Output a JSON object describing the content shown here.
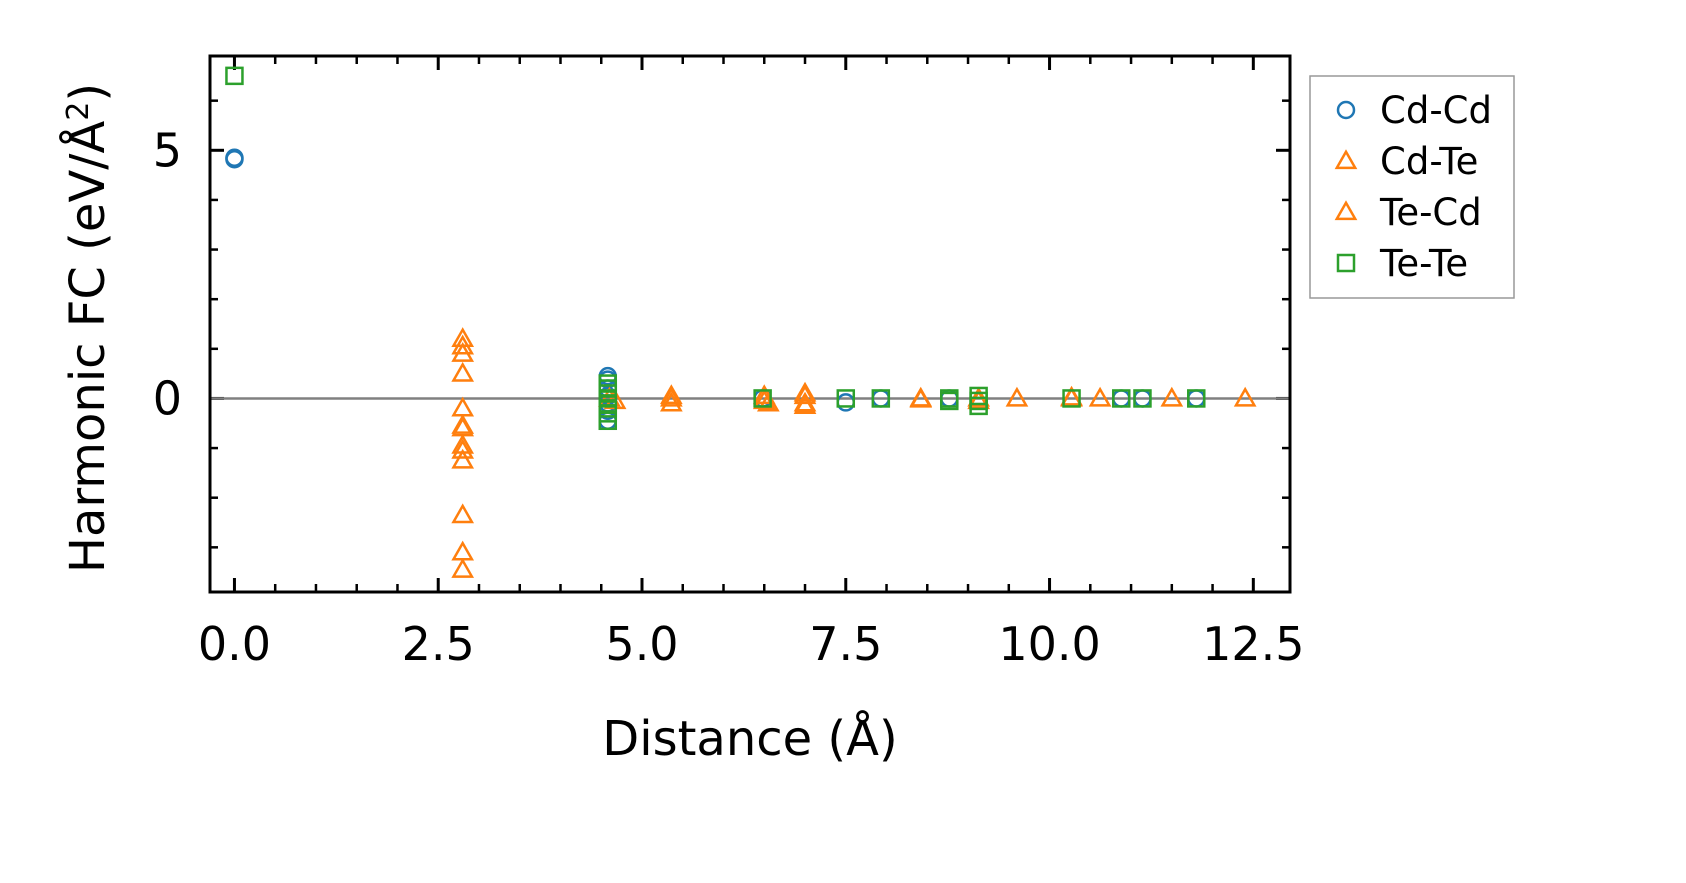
{
  "chart_data": {
    "type": "scatter",
    "title": "",
    "xlabel": "Distance (Å)",
    "ylabel": "Harmonic FC (eV/Å",
    "ylabel_sup": "2",
    "ylabel_close": ")",
    "xlim": [
      -0.3,
      12.95
    ],
    "ylim": [
      -3.9,
      6.9
    ],
    "xticks": [
      0.0,
      2.5,
      5.0,
      7.5,
      10.0,
      12.5
    ],
    "xtick_labels": [
      "0.0",
      "2.5",
      "5.0",
      "7.5",
      "10.0",
      "12.5"
    ],
    "xminor_step": 0.5,
    "yticks": [
      0,
      5
    ],
    "ytick_labels": [
      "0",
      "5"
    ],
    "yminor_step": 1,
    "zero_line": true,
    "legend_position": "outside-right-top",
    "series": [
      {
        "name": "Cd-Cd",
        "marker": "circle",
        "color": "#1f77b4",
        "points": [
          [
            0.0,
            4.82
          ],
          [
            0.0,
            4.85
          ],
          [
            4.58,
            0.45
          ],
          [
            4.58,
            0.38
          ],
          [
            4.58,
            0.2
          ],
          [
            4.58,
            0.05
          ],
          [
            4.58,
            -0.1
          ],
          [
            4.58,
            -0.25
          ],
          [
            4.58,
            -0.45
          ],
          [
            6.48,
            0.0
          ],
          [
            7.5,
            -0.08
          ],
          [
            7.93,
            0.0
          ],
          [
            8.77,
            0.0
          ],
          [
            10.88,
            0.0
          ],
          [
            11.14,
            0.0
          ],
          [
            11.8,
            0.0
          ]
        ]
      },
      {
        "name": "Cd-Te",
        "marker": "triangle",
        "color": "#ff7f0e",
        "points": [
          [
            2.8,
            1.2
          ],
          [
            2.8,
            1.05
          ],
          [
            2.8,
            0.9
          ],
          [
            2.8,
            0.5
          ],
          [
            2.8,
            -0.2
          ],
          [
            2.8,
            -0.55
          ],
          [
            2.8,
            -0.6
          ],
          [
            2.8,
            -0.95
          ],
          [
            2.8,
            -1.05
          ],
          [
            2.8,
            -1.25
          ],
          [
            2.8,
            -2.35
          ],
          [
            2.8,
            -3.1
          ],
          [
            2.8,
            -3.45
          ],
          [
            4.67,
            -0.05
          ],
          [
            5.36,
            0.05
          ],
          [
            5.36,
            -0.1
          ],
          [
            6.5,
            0.05
          ],
          [
            6.55,
            -0.1
          ],
          [
            7.0,
            0.1
          ],
          [
            7.0,
            -0.15
          ],
          [
            8.42,
            0.0
          ],
          [
            9.13,
            0.0
          ],
          [
            9.6,
            0.0
          ],
          [
            10.27,
            0.0
          ],
          [
            10.62,
            0.0
          ],
          [
            11.5,
            0.0
          ],
          [
            12.4,
            0.0
          ]
        ]
      },
      {
        "name": "Te-Cd",
        "marker": "triangle",
        "color": "#ff7f0e",
        "points": [
          [
            4.6,
            0.0
          ],
          [
            5.36,
            0.0
          ],
          [
            6.5,
            -0.05
          ],
          [
            7.0,
            0.05
          ],
          [
            7.0,
            -0.1
          ],
          [
            8.42,
            -0.02
          ],
          [
            9.13,
            -0.05
          ],
          [
            10.27,
            0.02
          ]
        ]
      },
      {
        "name": "Te-Te",
        "marker": "square",
        "color": "#2ca02c",
        "points": [
          [
            0.0,
            6.5
          ],
          [
            4.58,
            0.3
          ],
          [
            4.58,
            0.2
          ],
          [
            4.58,
            0.1
          ],
          [
            4.58,
            0.0
          ],
          [
            4.58,
            -0.1
          ],
          [
            4.58,
            -0.2
          ],
          [
            4.58,
            -0.3
          ],
          [
            4.58,
            -0.45
          ],
          [
            6.48,
            0.0
          ],
          [
            7.5,
            0.0
          ],
          [
            7.93,
            0.0
          ],
          [
            8.77,
            0.0
          ],
          [
            8.77,
            -0.05
          ],
          [
            9.13,
            0.05
          ],
          [
            9.13,
            -0.05
          ],
          [
            9.13,
            -0.15
          ],
          [
            10.27,
            0.0
          ],
          [
            10.88,
            0.0
          ],
          [
            11.14,
            0.0
          ],
          [
            11.8,
            0.0
          ]
        ]
      }
    ]
  }
}
